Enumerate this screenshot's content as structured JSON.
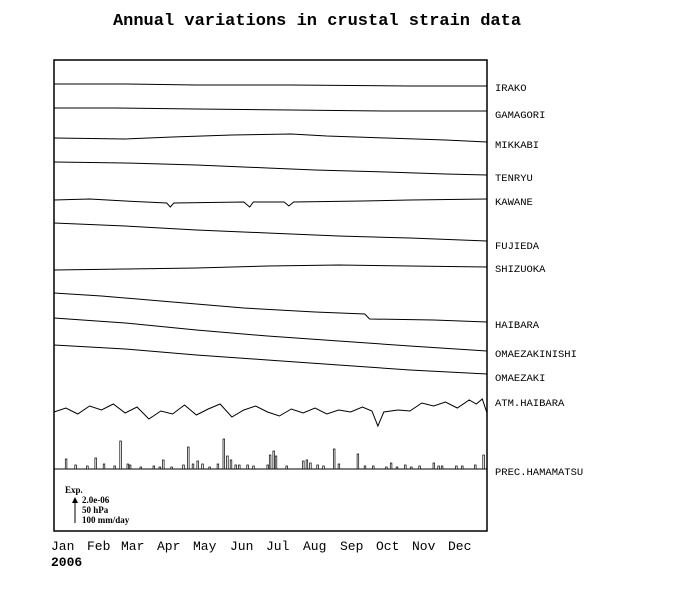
{
  "chart_data": {
    "type": "line",
    "title": "Annual variations in crustal strain data",
    "year": "2006",
    "months": [
      "Jan",
      "Feb",
      "Mar",
      "Apr",
      "May",
      "Jun",
      "Jul",
      "Aug",
      "Sep",
      "Oct",
      "Nov",
      "Dec"
    ],
    "grid": false,
    "legend_position": "right",
    "scale": {
      "label": "Exp.",
      "items": [
        "2.0e-06",
        "50 hPa",
        "100 mm/day"
      ]
    },
    "series": [
      {
        "name": "IRAKO",
        "kind": "strain",
        "points": [
          [
            0,
            84
          ],
          [
            60,
            84
          ],
          [
            120,
            85
          ],
          [
            200,
            85
          ],
          [
            300,
            86
          ],
          [
            365,
            86
          ]
        ]
      },
      {
        "name": "GAMAGORI",
        "kind": "strain",
        "points": [
          [
            0,
            108
          ],
          [
            50,
            108
          ],
          [
            120,
            109
          ],
          [
            200,
            110
          ],
          [
            280,
            111
          ],
          [
            365,
            111
          ]
        ]
      },
      {
        "name": "MIKKABI",
        "kind": "strain",
        "points": [
          [
            0,
            138
          ],
          [
            60,
            139
          ],
          [
            100,
            137
          ],
          [
            150,
            135
          ],
          [
            200,
            134
          ],
          [
            230,
            136
          ],
          [
            280,
            138
          ],
          [
            330,
            140
          ],
          [
            365,
            142
          ]
        ]
      },
      {
        "name": "TENRYU",
        "kind": "strain",
        "points": [
          [
            0,
            162
          ],
          [
            60,
            163
          ],
          [
            120,
            165
          ],
          [
            180,
            168
          ],
          [
            220,
            170
          ],
          [
            280,
            172
          ],
          [
            330,
            174
          ],
          [
            365,
            175
          ]
        ]
      },
      {
        "name": "KAWANE",
        "kind": "strain",
        "points": [
          [
            0,
            200
          ],
          [
            30,
            199
          ],
          [
            60,
            201
          ],
          [
            95,
            203
          ],
          [
            98,
            207
          ],
          [
            101,
            203
          ],
          [
            160,
            202
          ],
          [
            165,
            207
          ],
          [
            168,
            202
          ],
          [
            194,
            202
          ],
          [
            198,
            206
          ],
          [
            202,
            202
          ],
          [
            260,
            201
          ],
          [
            300,
            200
          ],
          [
            365,
            199
          ]
        ]
      },
      {
        "name": "FUJIEDA",
        "kind": "strain",
        "points": [
          [
            0,
            223
          ],
          [
            60,
            226
          ],
          [
            120,
            230
          ],
          [
            180,
            233
          ],
          [
            240,
            236
          ],
          [
            300,
            238
          ],
          [
            365,
            241
          ]
        ]
      },
      {
        "name": "SHIZUOKA",
        "kind": "strain",
        "points": [
          [
            0,
            270
          ],
          [
            60,
            269
          ],
          [
            120,
            268
          ],
          [
            180,
            266
          ],
          [
            240,
            265
          ],
          [
            300,
            266
          ],
          [
            365,
            267
          ]
        ]
      },
      {
        "name": "HAIBARA",
        "kind": "strain",
        "points": [
          [
            0,
            293
          ],
          [
            40,
            296
          ],
          [
            100,
            302
          ],
          [
            160,
            308
          ],
          [
            220,
            312
          ],
          [
            262,
            314
          ],
          [
            266,
            319
          ],
          [
            320,
            320
          ],
          [
            365,
            322
          ]
        ]
      },
      {
        "name": "OMAEZAKINISHI",
        "kind": "strain",
        "points": [
          [
            0,
            318
          ],
          [
            60,
            323
          ],
          [
            120,
            330
          ],
          [
            180,
            336
          ],
          [
            240,
            341
          ],
          [
            300,
            346
          ],
          [
            365,
            351
          ]
        ]
      },
      {
        "name": "OMAEZAKI",
        "kind": "strain",
        "points": [
          [
            0,
            345
          ],
          [
            60,
            349
          ],
          [
            120,
            355
          ],
          [
            180,
            360
          ],
          [
            240,
            365
          ],
          [
            300,
            370
          ],
          [
            365,
            374
          ]
        ]
      },
      {
        "name": "ATM.HAIBARA",
        "kind": "pressure",
        "points": [
          [
            0,
            412
          ],
          [
            10,
            408
          ],
          [
            20,
            414
          ],
          [
            30,
            406
          ],
          [
            40,
            410
          ],
          [
            50,
            404
          ],
          [
            60,
            413
          ],
          [
            70,
            407
          ],
          [
            80,
            419
          ],
          [
            90,
            411
          ],
          [
            100,
            414
          ],
          [
            110,
            405
          ],
          [
            120,
            415
          ],
          [
            130,
            409
          ],
          [
            140,
            404
          ],
          [
            150,
            417
          ],
          [
            160,
            410
          ],
          [
            170,
            406
          ],
          [
            180,
            412
          ],
          [
            190,
            416
          ],
          [
            200,
            409
          ],
          [
            210,
            413
          ],
          [
            220,
            408
          ],
          [
            230,
            414
          ],
          [
            240,
            410
          ],
          [
            250,
            412
          ],
          [
            260,
            407
          ],
          [
            268,
            411
          ],
          [
            273,
            426
          ],
          [
            278,
            412
          ],
          [
            290,
            410
          ],
          [
            300,
            411
          ],
          [
            310,
            403
          ],
          [
            320,
            406
          ],
          [
            330,
            402
          ],
          [
            340,
            408
          ],
          [
            350,
            400
          ],
          [
            356,
            404
          ],
          [
            361,
            399
          ],
          [
            365,
            413
          ]
        ]
      },
      {
        "name": "PREC.HAMAMATSU",
        "kind": "precipitation",
        "bars": [
          [
            10,
            10
          ],
          [
            18,
            4
          ],
          [
            28,
            3
          ],
          [
            35,
            11
          ],
          [
            42,
            5
          ],
          [
            51,
            3
          ],
          [
            56,
            28
          ],
          [
            62,
            5
          ],
          [
            64,
            4
          ],
          [
            73,
            2
          ],
          [
            84,
            3
          ],
          [
            89,
            2
          ],
          [
            92,
            9
          ],
          [
            99,
            2
          ],
          [
            109,
            4
          ],
          [
            113,
            22
          ],
          [
            117,
            5
          ],
          [
            121,
            8
          ],
          [
            125,
            5
          ],
          [
            131,
            2
          ],
          [
            138,
            5
          ],
          [
            143,
            30
          ],
          [
            146,
            13
          ],
          [
            149,
            9
          ],
          [
            153,
            4
          ],
          [
            156,
            4
          ],
          [
            163,
            4
          ],
          [
            168,
            3
          ],
          [
            180,
            4
          ],
          [
            182,
            14
          ],
          [
            185,
            18
          ],
          [
            187,
            13
          ],
          [
            196,
            3
          ],
          [
            210,
            8
          ],
          [
            213,
            9
          ],
          [
            216,
            6
          ],
          [
            222,
            4
          ],
          [
            227,
            3
          ],
          [
            236,
            20
          ],
          [
            240,
            5
          ],
          [
            256,
            15
          ],
          [
            262,
            3
          ],
          [
            269,
            3
          ],
          [
            280,
            2
          ],
          [
            284,
            6
          ],
          [
            289,
            2
          ],
          [
            296,
            4
          ],
          [
            301,
            2
          ],
          [
            308,
            3
          ],
          [
            320,
            6
          ],
          [
            324,
            3
          ],
          [
            327,
            3
          ],
          [
            339,
            3
          ],
          [
            344,
            3
          ],
          [
            355,
            4
          ],
          [
            362,
            14
          ]
        ]
      }
    ]
  }
}
